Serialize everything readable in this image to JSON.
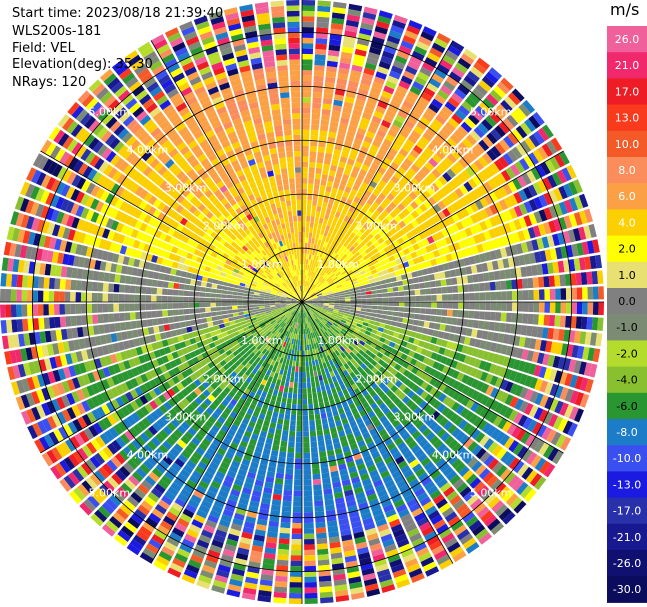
{
  "header": {
    "start_time": "Start time: 2023/08/18 21:39:40",
    "instrument": "WLS200s-181",
    "field": "Field: VEL",
    "elevation": "Elevation(deg): 35.30",
    "nrays": "NRays: 120"
  },
  "chart_data": {
    "type": "heatmap",
    "projection": "polar-ppi",
    "field": "VEL",
    "elevation_deg": 35.3,
    "n_rays": 120,
    "range_rings_km": [
      1.0,
      2.0,
      3.0,
      4.0,
      5.0
    ],
    "range_labels": [
      "1.00km",
      "2.00km",
      "3.00km",
      "4.00km",
      "5.00km"
    ],
    "max_range_km": 5.6,
    "spoke_angles_deg": [
      0,
      30,
      60,
      90,
      120,
      150,
      180,
      210,
      240,
      270,
      300,
      330
    ],
    "colorbar": {
      "unit": "m/s",
      "tick_labels": [
        "26.0",
        "21.0",
        "17.0",
        "13.0",
        "10.0",
        "8.0",
        "6.0",
        "4.0",
        "2.0",
        "1.0",
        "0.0",
        "-1.0",
        "-2.0",
        "-4.0",
        "-6.0",
        "-8.0",
        "-10.0",
        "-13.0",
        "-17.0",
        "-21.0",
        "-26.0",
        "-30.0"
      ],
      "colors": [
        "#f0609a",
        "#f2286c",
        "#ee1c24",
        "#fa3a1c",
        "#f45a28",
        "#fb8c5c",
        "#fba044",
        "#fbcf00",
        "#ffff00",
        "#e8e070",
        "#808080",
        "#7c8c74",
        "#b4dc2c",
        "#88c030",
        "#2a9632",
        "#1c7cc8",
        "#3a4ff0",
        "#1a1ae0",
        "#2830aa",
        "#181890",
        "#101070",
        "#0c0c5c"
      ]
    },
    "velocity_pattern": {
      "north_sector_m_s": 7.0,
      "south_sector_m_s": -7.0,
      "axis_azimuth_deg": 0,
      "noise_beyond_km": 4.3
    }
  }
}
